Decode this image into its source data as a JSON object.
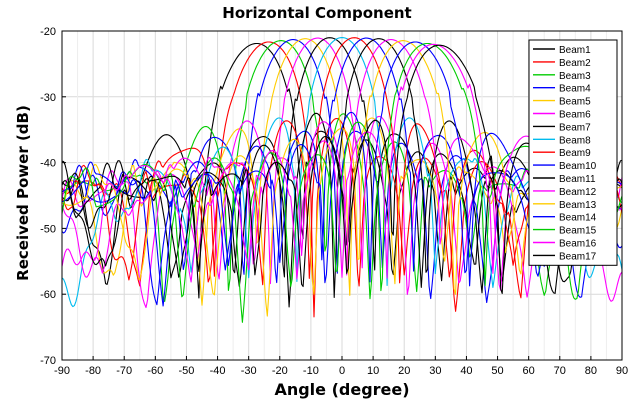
{
  "chart_data": {
    "type": "line",
    "title": "Horizontal Component",
    "xlabel": "Angle (degree)",
    "ylabel": "Received Power (dB)",
    "xlim": [
      -90,
      90
    ],
    "ylim": [
      -70,
      -20
    ],
    "xticks": [
      "-90",
      "-80",
      "-70",
      "-60",
      "-50",
      "-40",
      "-30",
      "-20",
      "-10",
      "0",
      "10",
      "20",
      "30",
      "40",
      "50",
      "60",
      "70",
      "80",
      "90"
    ],
    "yticks": [
      "-20",
      "-30",
      "-40",
      "-50",
      "-60",
      "-70"
    ],
    "grid": true,
    "legend_position": "top-right",
    "series": [
      {
        "name": "Beam1",
        "color": "#000000",
        "peak_angle": -28,
        "peak_db": -21
      },
      {
        "name": "Beam2",
        "color": "#ff0000",
        "peak_angle": -24,
        "peak_db": -21
      },
      {
        "name": "Beam3",
        "color": "#00cc00",
        "peak_angle": -20,
        "peak_db": -21
      },
      {
        "name": "Beam4",
        "color": "#0000ff",
        "peak_angle": -16,
        "peak_db": -21
      },
      {
        "name": "Beam5",
        "color": "#ffcc00",
        "peak_angle": -12,
        "peak_db": -21
      },
      {
        "name": "Beam6",
        "color": "#ff00ff",
        "peak_angle": -8,
        "peak_db": -21
      },
      {
        "name": "Beam7",
        "color": "#000000",
        "peak_angle": -4,
        "peak_db": -21
      },
      {
        "name": "Beam8",
        "color": "#00bbee",
        "peak_angle": 0,
        "peak_db": -21
      },
      {
        "name": "Beam9",
        "color": "#ff0000",
        "peak_angle": 4,
        "peak_db": -21
      },
      {
        "name": "Beam10",
        "color": "#0000ff",
        "peak_angle": 8,
        "peak_db": -21
      },
      {
        "name": "Beam11",
        "color": "#000000",
        "peak_angle": 12,
        "peak_db": -21
      },
      {
        "name": "Beam12",
        "color": "#ff00ff",
        "peak_angle": 16,
        "peak_db": -21
      },
      {
        "name": "Beam13",
        "color": "#ffcc00",
        "peak_angle": 20,
        "peak_db": -21
      },
      {
        "name": "Beam14",
        "color": "#0000ff",
        "peak_angle": 24,
        "peak_db": -21
      },
      {
        "name": "Beam15",
        "color": "#00cc00",
        "peak_angle": 28,
        "peak_db": -21
      },
      {
        "name": "Beam16",
        "color": "#ff00ff",
        "peak_angle": 30,
        "peak_db": -21
      },
      {
        "name": "Beam17",
        "color": "#000000",
        "peak_angle": 32,
        "peak_db": -21
      }
    ]
  }
}
